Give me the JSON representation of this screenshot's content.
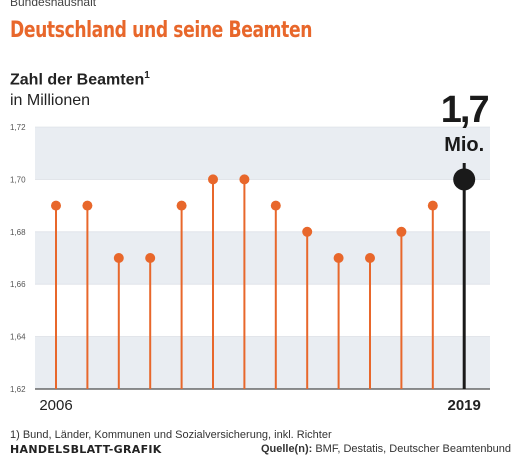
{
  "header": {
    "kicker": "Bundeshaushalt",
    "headline": "Deutschland und seine Beamten",
    "subtitle": "Zahl der Beamten",
    "subtitle_footnote_mark": "1",
    "unit": "in Millionen"
  },
  "highlight": {
    "value_text": "1,7",
    "unit_text": "Mio."
  },
  "footer": {
    "footnote": "1) Bund, Länder, Kommunen und Sozialversicherung, inkl. Richter",
    "brand": "HANDELSBLATT-GRAFIK",
    "source_label": "Quelle(n):",
    "source_text": " BMF, Destatis, Deutscher Beamtenbund"
  },
  "colors": {
    "accent": "#e8672b",
    "highlight": "#1a1a1a",
    "band": "#e9edf2"
  },
  "chart_data": {
    "type": "lollipop",
    "x": [
      2006,
      2007,
      2008,
      2009,
      2010,
      2011,
      2012,
      2013,
      2014,
      2015,
      2016,
      2017,
      2018,
      2019
    ],
    "values": [
      1.69,
      1.69,
      1.67,
      1.67,
      1.69,
      1.7,
      1.7,
      1.69,
      1.68,
      1.67,
      1.67,
      1.68,
      1.69,
      1.7
    ],
    "x_tick_labels": [
      {
        "year": 2006,
        "label": "2006"
      },
      {
        "year": 2019,
        "label": "2019"
      }
    ],
    "y_ticks": [
      "1,62",
      "1,64",
      "1,66",
      "1,68",
      "1,70",
      "1,72"
    ],
    "ylim": [
      1.62,
      1.72
    ],
    "highlight_year": 2019,
    "grid": "alternating bands"
  }
}
